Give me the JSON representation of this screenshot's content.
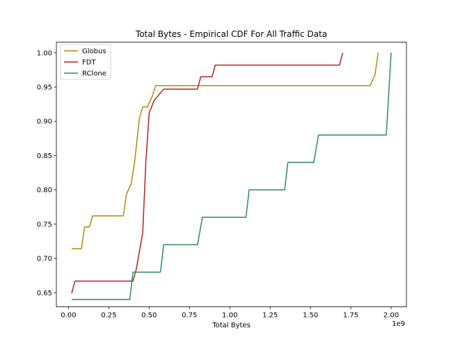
{
  "chart_data": {
    "type": "line",
    "title": "Total Bytes - Empirical CDF For All Traffic Data",
    "xlabel": "Total Bytes",
    "ylabel": "",
    "x_offset_label": "1e9",
    "xlim": [
      -0.075,
      2.095
    ],
    "ylim": [
      0.6295,
      1.0155
    ],
    "x_ticks": [
      0.0,
      0.25,
      0.5,
      0.75,
      1.0,
      1.25,
      1.5,
      1.75,
      2.0
    ],
    "x_tick_labels": [
      "0.00",
      "0.25",
      "0.50",
      "0.75",
      "1.00",
      "1.25",
      "1.50",
      "1.75",
      "2.00"
    ],
    "y_ticks": [
      0.65,
      0.7,
      0.75,
      0.8,
      0.85,
      0.9,
      0.95,
      1.0
    ],
    "y_tick_labels": [
      "0.65",
      "0.70",
      "0.75",
      "0.80",
      "0.85",
      "0.90",
      "0.95",
      "1.00"
    ],
    "grid": false,
    "legend_position": "top-left",
    "series": [
      {
        "name": "Globus",
        "color": "#b8860b",
        "x": [
          0.02,
          0.08,
          0.1,
          0.13,
          0.15,
          0.34,
          0.36,
          0.39,
          0.41,
          0.44,
          0.46,
          0.49,
          0.52,
          0.54,
          0.8,
          1.0,
          1.5,
          1.87,
          1.9,
          1.92
        ],
        "y": [
          0.714,
          0.714,
          0.746,
          0.746,
          0.762,
          0.762,
          0.794,
          0.81,
          0.841,
          0.905,
          0.921,
          0.921,
          0.937,
          0.952,
          0.952,
          0.952,
          0.952,
          0.952,
          0.968,
          1.0
        ]
      },
      {
        "name": "FDT",
        "color": "#b22222",
        "x": [
          0.02,
          0.04,
          0.4,
          0.42,
          0.46,
          0.48,
          0.5,
          0.53,
          0.59,
          0.8,
          0.82,
          0.89,
          0.91,
          1.68,
          1.7
        ],
        "y": [
          0.649,
          0.667,
          0.667,
          0.684,
          0.737,
          0.842,
          0.912,
          0.93,
          0.947,
          0.947,
          0.965,
          0.965,
          0.982,
          0.982,
          1.0
        ]
      },
      {
        "name": "RClone",
        "color": "#2e8b57",
        "x": [
          0.02,
          0.38,
          0.4,
          0.57,
          0.59,
          0.8,
          0.83,
          1.1,
          1.12,
          1.34,
          1.36,
          1.52,
          1.55,
          1.97,
          2.0
        ],
        "y": [
          0.64,
          0.64,
          0.68,
          0.68,
          0.72,
          0.72,
          0.76,
          0.76,
          0.8,
          0.8,
          0.84,
          0.84,
          0.88,
          0.88,
          1.0
        ]
      }
    ]
  }
}
